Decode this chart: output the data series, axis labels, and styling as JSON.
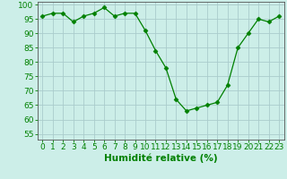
{
  "x": [
    0,
    1,
    2,
    3,
    4,
    5,
    6,
    7,
    8,
    9,
    10,
    11,
    12,
    13,
    14,
    15,
    16,
    17,
    18,
    19,
    20,
    21,
    22,
    23
  ],
  "y": [
    96,
    97,
    97,
    94,
    96,
    97,
    99,
    96,
    97,
    97,
    91,
    84,
    78,
    67,
    63,
    64,
    65,
    66,
    72,
    85,
    90,
    95,
    94,
    96
  ],
  "line_color": "#008000",
  "marker": "D",
  "marker_size": 2.5,
  "bg_color": "#cceee8",
  "grid_color": "#aacccc",
  "xlabel": "Humidité relative (%)",
  "xlabel_color": "#008000",
  "ylabel_values": [
    55,
    60,
    65,
    70,
    75,
    80,
    85,
    90,
    95,
    100
  ],
  "ylim": [
    53,
    101
  ],
  "xlim": [
    -0.5,
    23.5
  ],
  "tick_fontsize": 6.5,
  "xlabel_fontsize": 7.5
}
